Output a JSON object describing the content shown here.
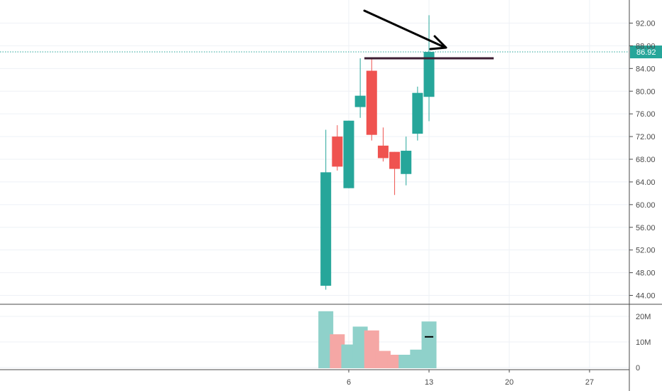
{
  "chart_data": [
    {
      "type": "candlestick",
      "panel": "price",
      "x_ticks": [
        "6",
        "13",
        "20",
        "27"
      ],
      "y_ticks": [
        "44.00",
        "48.00",
        "52.00",
        "56.00",
        "60.00",
        "64.00",
        "68.00",
        "72.00",
        "76.00",
        "80.00",
        "84.00",
        "88.00",
        "92.00"
      ],
      "ylim": [
        42,
        95
      ],
      "last_price_label": "86.92",
      "last_price": 86.92,
      "colors": {
        "up": "#26a69a",
        "down": "#ef5350",
        "last_price_line": "#26a69a",
        "resistance_line": "#3d1f33",
        "arrow": "#000000"
      },
      "candles": [
        {
          "day": 4,
          "open": 45.7,
          "high": 73.2,
          "low": 45.0,
          "close": 65.7
        },
        {
          "day": 5,
          "open": 72.0,
          "high": 74.0,
          "low": 66.0,
          "close": 66.7
        },
        {
          "day": 6,
          "open": 62.9,
          "high": 74.8,
          "low": 62.9,
          "close": 74.8
        },
        {
          "day": 7,
          "open": 77.2,
          "high": 85.8,
          "low": 75.3,
          "close": 79.2
        },
        {
          "day": 8,
          "open": 83.6,
          "high": 85.8,
          "low": 71.3,
          "close": 72.3
        },
        {
          "day": 9,
          "open": 70.4,
          "high": 73.6,
          "low": 67.6,
          "close": 68.2
        },
        {
          "day": 10,
          "open": 69.3,
          "high": 69.3,
          "low": 61.7,
          "close": 66.3
        },
        {
          "day": 11,
          "open": 65.4,
          "high": 72.0,
          "low": 63.4,
          "close": 69.5
        },
        {
          "day": 12,
          "open": 72.5,
          "high": 80.8,
          "low": 71.3,
          "close": 79.7
        },
        {
          "day": 13,
          "open": 79.0,
          "high": 93.4,
          "low": 74.7,
          "close": 86.92
        }
      ],
      "annotations": {
        "horizontal_level": 85.8,
        "arrow": "pointing to last candle near resistance"
      }
    },
    {
      "type": "bar",
      "panel": "volume",
      "y_ticks": [
        "0",
        "10M",
        "20M"
      ],
      "ylim": [
        0,
        24
      ],
      "unit": "M",
      "volumes": [
        {
          "day": 4,
          "value": 22.0,
          "direction": "up"
        },
        {
          "day": 5,
          "value": 13.0,
          "direction": "down"
        },
        {
          "day": 6,
          "value": 9.0,
          "direction": "up"
        },
        {
          "day": 7,
          "value": 16.0,
          "direction": "up"
        },
        {
          "day": 8,
          "value": 14.5,
          "direction": "down"
        },
        {
          "day": 9,
          "value": 6.5,
          "direction": "down"
        },
        {
          "day": 10,
          "value": 5.0,
          "direction": "down"
        },
        {
          "day": 11,
          "value": 5.0,
          "direction": "up"
        },
        {
          "day": 12,
          "value": 7.0,
          "direction": "up"
        },
        {
          "day": 13,
          "value": 18.0,
          "direction": "up"
        }
      ],
      "colors": {
        "up": "#8fd1ca",
        "down": "#f5a7a5"
      },
      "current_marker": 12.0
    }
  ]
}
